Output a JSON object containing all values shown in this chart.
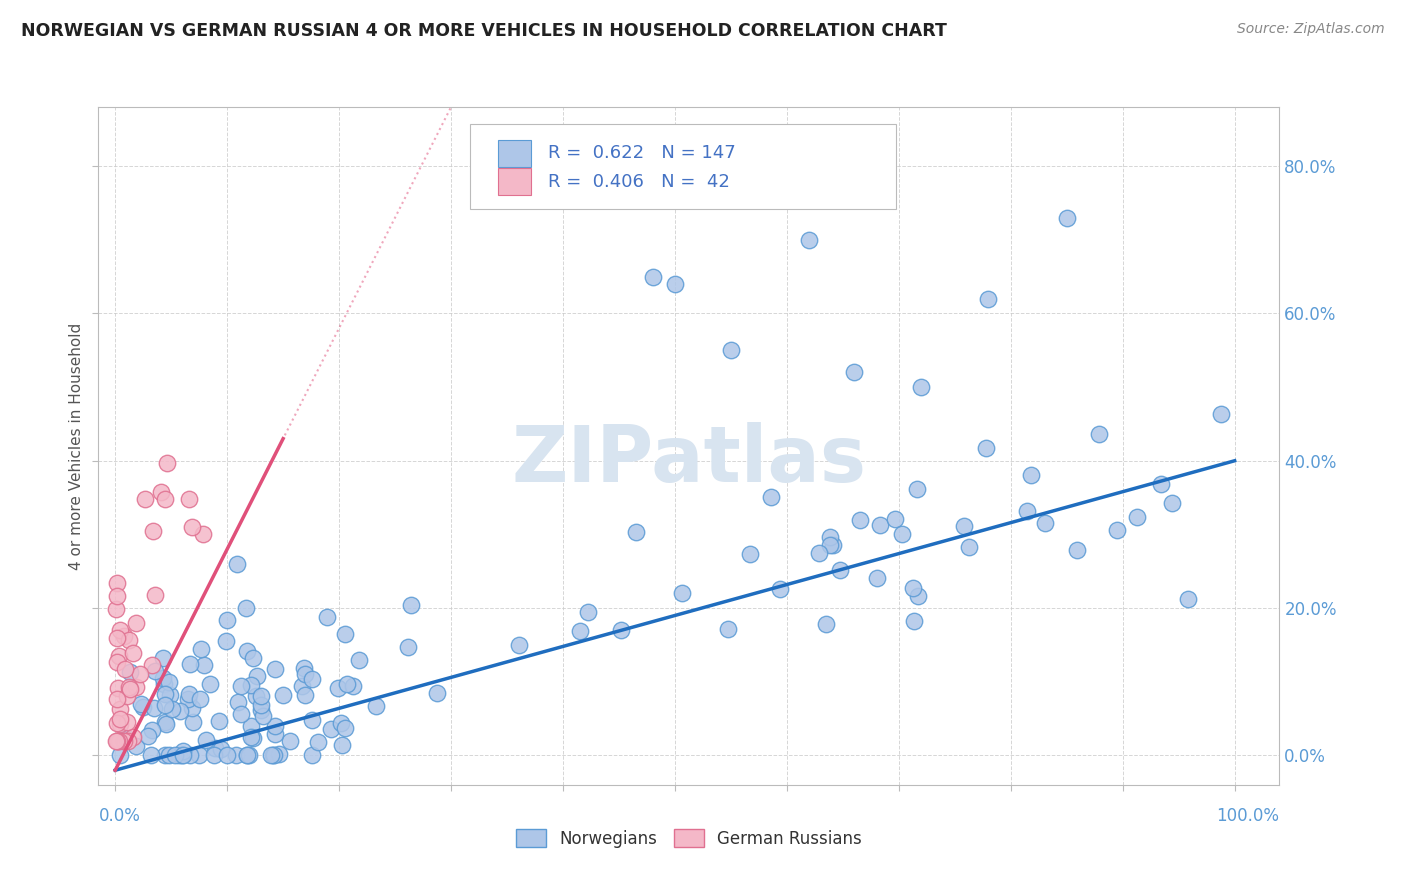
{
  "title": "NORWEGIAN VS GERMAN RUSSIAN 4 OR MORE VEHICLES IN HOUSEHOLD CORRELATION CHART",
  "source": "Source: ZipAtlas.com",
  "ylabel": "4 or more Vehicles in Household",
  "watermark": "ZIPatlas",
  "norwegian_color": "#aec6e8",
  "norwegian_edge_color": "#5b9bd5",
  "german_russian_color": "#f4b8c8",
  "german_russian_edge_color": "#e07090",
  "norwegian_line_color": "#1f6dbf",
  "german_russian_line_color": "#e0507a",
  "background_color": "#ffffff",
  "grid_color": "#cccccc",
  "title_color": "#222222",
  "source_color": "#888888",
  "axis_label_color": "#5b9bd5",
  "ylabel_color": "#555555",
  "watermark_color": "#d8e4f0",
  "legend_text_color": "#4472c4"
}
